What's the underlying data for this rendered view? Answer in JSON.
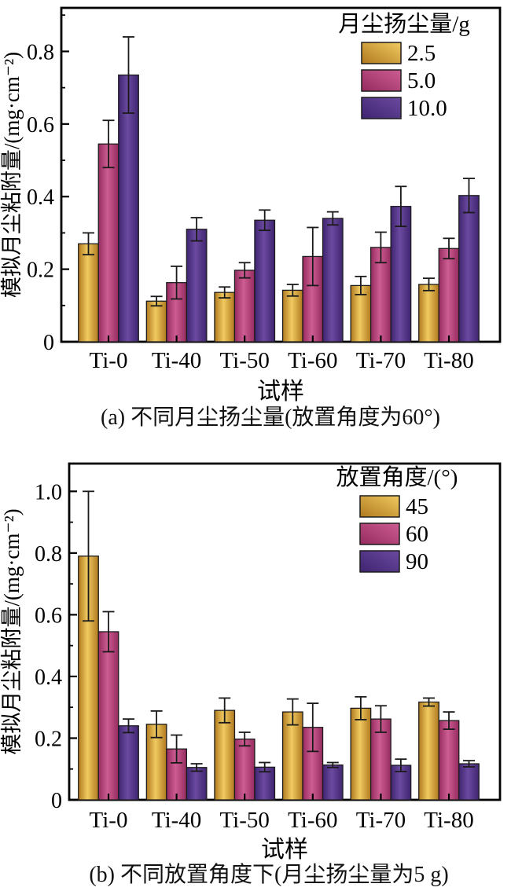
{
  "page": {
    "background": "#ffffff"
  },
  "colors": {
    "axis": "#000000",
    "error_bar": "#1a1a1a",
    "bar_outline": "#1c1c1c",
    "series": {
      "gold": {
        "dark": "#b0791f",
        "light": "#f0ca60"
      },
      "pink": {
        "dark": "#952b60",
        "light": "#cd5d92"
      },
      "purple": {
        "dark": "#3f2470",
        "light": "#6b4aa0"
      }
    }
  },
  "chart_data": [
    {
      "id": "a",
      "type": "bar",
      "caption": "(a) 不同月尘扬尘量(放置角度为60°)",
      "xlabel": "试样",
      "ylabel": "模拟月尘粘附量/(mg·cm⁻²)",
      "legend_title": "月尘扬尘量/g",
      "legend_position": "top-right",
      "grid": false,
      "categories": [
        "Ti-0",
        "Ti-40",
        "Ti-50",
        "Ti-60",
        "Ti-70",
        "Ti-80"
      ],
      "ylim": [
        0,
        0.92
      ],
      "yticks": [
        0,
        0.2,
        0.4,
        0.6,
        0.8
      ],
      "ytick_labels": [
        "0",
        "0.2",
        "0.4",
        "0.6",
        "0.8"
      ],
      "series": [
        {
          "name": "2.5",
          "color_key": "gold",
          "values": [
            0.27,
            0.112,
            0.136,
            0.142,
            0.155,
            0.158
          ],
          "errors": [
            0.03,
            0.013,
            0.015,
            0.016,
            0.025,
            0.017
          ]
        },
        {
          "name": "5.0",
          "color_key": "pink",
          "values": [
            0.545,
            0.163,
            0.197,
            0.235,
            0.26,
            0.257
          ],
          "errors": [
            0.065,
            0.045,
            0.021,
            0.08,
            0.042,
            0.028
          ]
        },
        {
          "name": "10.0",
          "color_key": "purple",
          "values": [
            0.735,
            0.31,
            0.335,
            0.34,
            0.373,
            0.403
          ],
          "errors": [
            0.105,
            0.032,
            0.028,
            0.018,
            0.055,
            0.047
          ]
        }
      ]
    },
    {
      "id": "b",
      "type": "bar",
      "caption": "(b) 不同放置角度下(月尘扬尘量为5 g)",
      "xlabel": "试样",
      "ylabel": "模拟月尘粘附量/(mg·cm⁻²)",
      "legend_title": "放置角度/(°)",
      "legend_position": "top-right",
      "grid": false,
      "categories": [
        "Ti-0",
        "Ti-40",
        "Ti-50",
        "Ti-60",
        "Ti-70",
        "Ti-80"
      ],
      "ylim": [
        0,
        1.09
      ],
      "yticks": [
        0,
        0.2,
        0.4,
        0.6,
        0.8,
        1.0
      ],
      "ytick_labels": [
        "0",
        "0.2",
        "0.4",
        "0.6",
        "0.8",
        "1.0"
      ],
      "series": [
        {
          "name": "45",
          "color_key": "gold",
          "values": [
            0.79,
            0.245,
            0.29,
            0.285,
            0.297,
            0.317
          ],
          "errors": [
            0.21,
            0.043,
            0.04,
            0.042,
            0.037,
            0.013
          ]
        },
        {
          "name": "60",
          "color_key": "pink",
          "values": [
            0.545,
            0.165,
            0.197,
            0.235,
            0.262,
            0.257
          ],
          "errors": [
            0.065,
            0.045,
            0.022,
            0.078,
            0.043,
            0.028
          ]
        },
        {
          "name": "90",
          "color_key": "purple",
          "values": [
            0.24,
            0.105,
            0.106,
            0.113,
            0.112,
            0.117
          ],
          "errors": [
            0.022,
            0.012,
            0.015,
            0.008,
            0.02,
            0.01
          ]
        }
      ]
    }
  ]
}
